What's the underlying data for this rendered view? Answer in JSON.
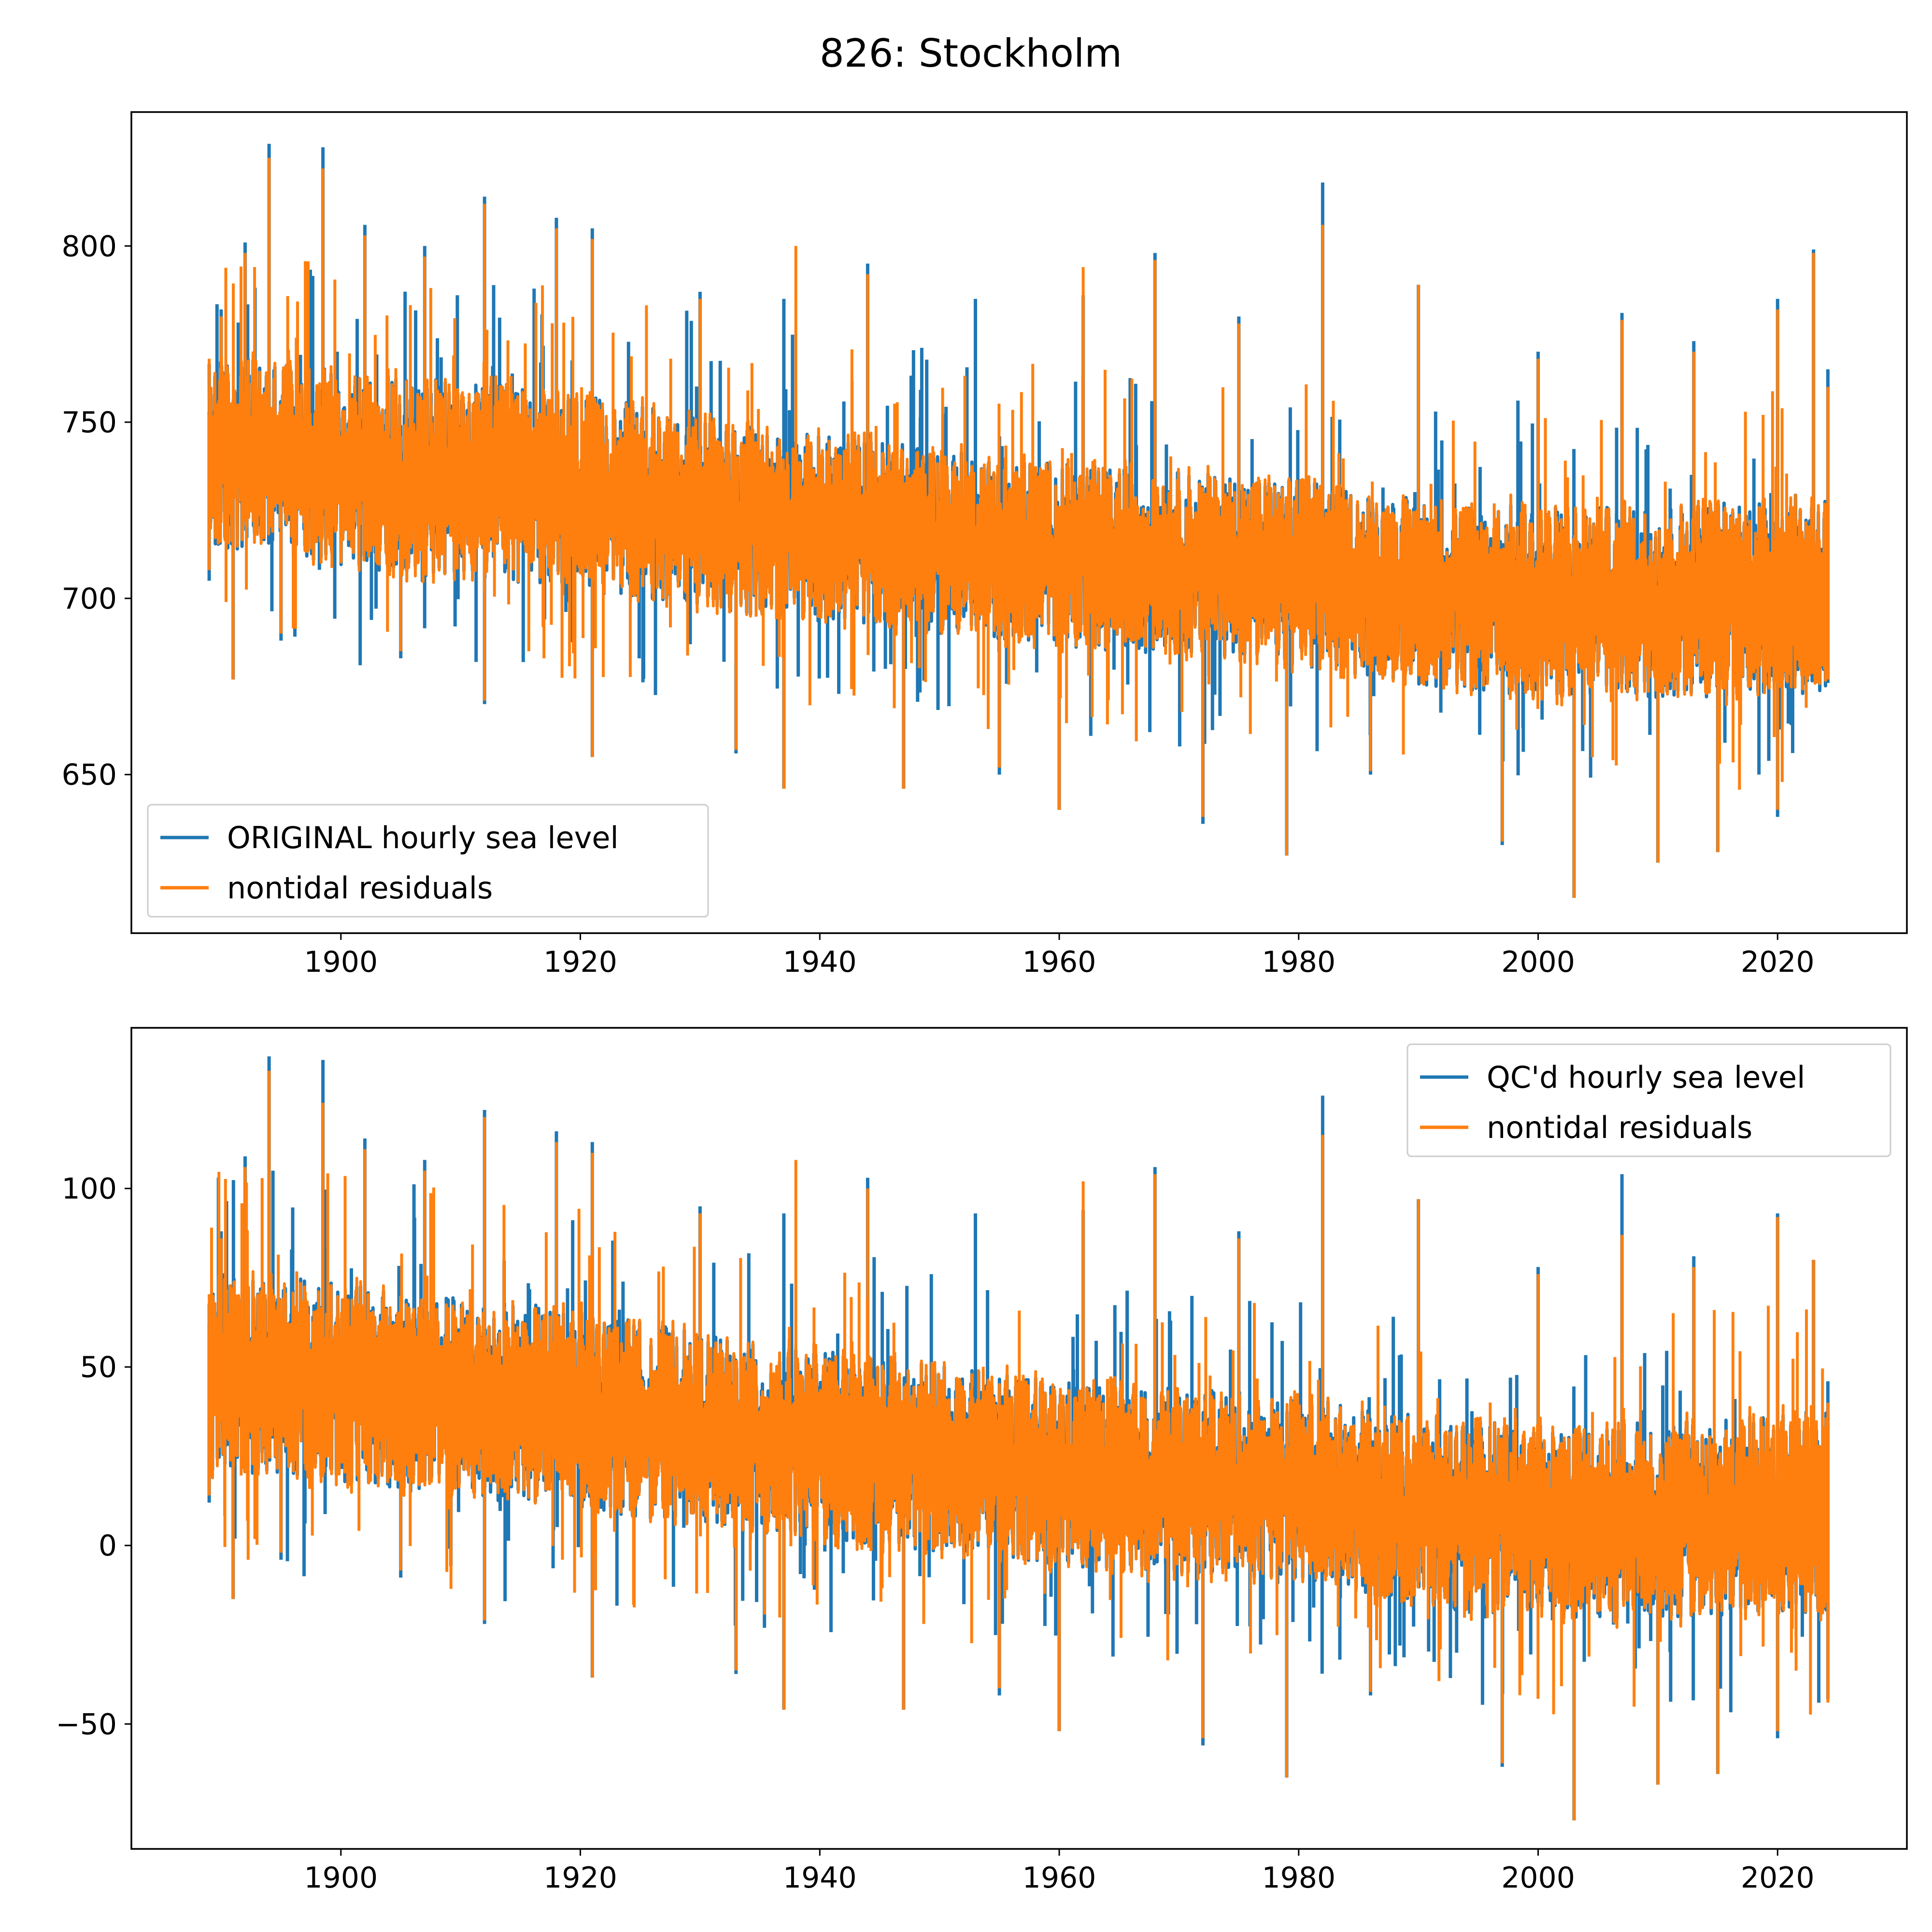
{
  "figure": {
    "title": "826: Stockholm"
  },
  "colors": {
    "original": "#1f77b4",
    "residual": "#ff7f0e"
  },
  "chart_data": [
    {
      "type": "line",
      "title": "",
      "xlabel": "",
      "ylabel": "",
      "xlim": [
        1882.5,
        2030.8
      ],
      "ylim": [
        605,
        838
      ],
      "xticks": [
        1900,
        1920,
        1940,
        1960,
        1980,
        2000,
        2020
      ],
      "yticks": [
        650,
        700,
        750,
        800
      ],
      "xtick_labels": [
        "1900",
        "1920",
        "1940",
        "1960",
        "1980",
        "2000",
        "2020"
      ],
      "ytick_labels": [
        "650",
        "700",
        "750",
        "800"
      ],
      "grid": false,
      "legend_position": "lower-left",
      "time_range": [
        1889.0,
        2024.2
      ],
      "series": [
        {
          "name": "ORIGINAL hourly sea level",
          "color": "#1f77b4",
          "max_points": [
            [
              1889.0,
              753
            ],
            [
              1890,
              782
            ],
            [
              1892,
              801
            ],
            [
              1894,
              829
            ],
            [
              1898.5,
              828
            ],
            [
              1902,
              806
            ],
            [
              1907,
              800
            ],
            [
              1912,
              814
            ],
            [
              1918,
              808
            ],
            [
              1921,
              805
            ],
            [
              1930,
              787
            ],
            [
              1937,
              785
            ],
            [
              1944,
              795
            ],
            [
              1953,
              785
            ],
            [
              1962,
              786
            ],
            [
              1968,
              798
            ],
            [
              1975,
              780
            ],
            [
              1982,
              818
            ],
            [
              1990,
              789
            ],
            [
              2000,
              770
            ],
            [
              2007,
              781
            ],
            [
              2013,
              773
            ],
            [
              2020,
              785
            ],
            [
              2023,
              799
            ],
            [
              2024.2,
              765
            ]
          ],
          "min_points": [
            [
              1889.0,
              705
            ],
            [
              1891,
              677
            ],
            [
              1895,
              688
            ],
            [
              1905,
              683
            ],
            [
              1912,
              670
            ],
            [
              1921,
              655
            ],
            [
              1933,
              656
            ],
            [
              1937,
              646
            ],
            [
              1947,
              646
            ],
            [
              1955,
              650
            ],
            [
              1960,
              640
            ],
            [
              1972,
              636
            ],
            [
              1979,
              627
            ],
            [
              1986,
              650
            ],
            [
              1997,
              630
            ],
            [
              2003,
              615
            ],
            [
              2010,
              625
            ],
            [
              2015,
              628
            ],
            [
              2020,
              638
            ],
            [
              2024.2,
              676
            ]
          ],
          "envelope_high": [
            [
              1889.0,
              768
            ],
            [
              1895,
              768
            ],
            [
              1905,
              763
            ],
            [
              1915,
              760
            ],
            [
              1925,
              755
            ],
            [
              1935,
              748
            ],
            [
              1945,
              745
            ],
            [
              1955,
              740
            ],
            [
              1965,
              737
            ],
            [
              1975,
              735
            ],
            [
              1982.5,
              733
            ],
            [
              1985,
              730
            ],
            [
              1995,
              727
            ],
            [
              2005,
              726
            ],
            [
              2015,
              728
            ],
            [
              2024.2,
              730
            ]
          ],
          "envelope_low": [
            [
              1889.0,
              712
            ],
            [
              1895,
              712
            ],
            [
              1905,
              707
            ],
            [
              1915,
              704
            ],
            [
              1925,
              700
            ],
            [
              1935,
              695
            ],
            [
              1945,
              692
            ],
            [
              1955,
              688
            ],
            [
              1965,
              685
            ],
            [
              1975,
              683
            ],
            [
              1982.5,
              680
            ],
            [
              1985,
              678
            ],
            [
              1995,
              673
            ],
            [
              2005,
              671
            ],
            [
              2015,
              672
            ],
            [
              2024.2,
              673
            ]
          ]
        },
        {
          "name": "nontidal residuals",
          "color": "#ff7f0e",
          "max_points": [
            [
              1889.0,
              752
            ],
            [
              1890,
              780
            ],
            [
              1892,
              798
            ],
            [
              1894,
              825
            ],
            [
              1898.5,
              822
            ],
            [
              1902,
              803
            ],
            [
              1907,
              797
            ],
            [
              1912,
              812
            ],
            [
              1918,
              805
            ],
            [
              1921,
              802
            ],
            [
              1930,
              785
            ],
            [
              1938,
              800
            ],
            [
              1944,
              792
            ],
            [
              1962,
              794
            ],
            [
              1968,
              796
            ],
            [
              1975,
              778
            ],
            [
              1982,
              806
            ],
            [
              1990,
              789
            ],
            [
              2000,
              768
            ],
            [
              2007,
              779
            ],
            [
              2013,
              770
            ],
            [
              2020,
              782
            ],
            [
              2023,
              798
            ],
            [
              2024.2,
              760
            ]
          ],
          "min_points": [
            [
              1889.0,
              708
            ],
            [
              1891,
              677
            ],
            [
              1895,
              690
            ],
            [
              1905,
              685
            ],
            [
              1912,
              671
            ],
            [
              1921,
              655
            ],
            [
              1933,
              657
            ],
            [
              1937,
              646
            ],
            [
              1947,
              646
            ],
            [
              1955,
              652
            ],
            [
              1960,
              640
            ],
            [
              1972,
              638
            ],
            [
              1979,
              627
            ],
            [
              1986,
              651
            ],
            [
              1997,
              631
            ],
            [
              2003,
              615
            ],
            [
              2010,
              625
            ],
            [
              2015,
              628
            ],
            [
              2020,
              640
            ],
            [
              2024.2,
              677
            ]
          ]
        }
      ]
    },
    {
      "type": "line",
      "title": "",
      "xlabel": "",
      "ylabel": "",
      "xlim": [
        1882.5,
        2030.8
      ],
      "ylim": [
        -85,
        145
      ],
      "xticks": [
        1900,
        1920,
        1940,
        1960,
        1980,
        2000,
        2020
      ],
      "yticks": [
        -50,
        0,
        50,
        100
      ],
      "xtick_labels": [
        "1900",
        "1920",
        "1940",
        "1960",
        "1980",
        "2000",
        "2020"
      ],
      "ytick_labels": [
        "−50",
        "0",
        "50",
        "100"
      ],
      "grid": false,
      "legend_position": "upper-right",
      "time_range": [
        1889.0,
        2024.2
      ],
      "series": [
        {
          "name": "QC'd hourly sea level",
          "color": "#1f77b4",
          "max_points": [
            [
              1889.0,
              62
            ],
            [
              1890,
              88
            ],
            [
              1892,
              109
            ],
            [
              1894,
              137
            ],
            [
              1898.5,
              136
            ],
            [
              1902,
              114
            ],
            [
              1907,
              108
            ],
            [
              1912,
              122
            ],
            [
              1918,
              116
            ],
            [
              1921,
              113
            ],
            [
              1930,
              95
            ],
            [
              1937,
              93
            ],
            [
              1944,
              103
            ],
            [
              1953,
              93
            ],
            [
              1962,
              94
            ],
            [
              1968,
              106
            ],
            [
              1975,
              88
            ],
            [
              1982,
              126
            ],
            [
              1990,
              97
            ],
            [
              2000,
              78
            ],
            [
              2007,
              104
            ],
            [
              2013,
              81
            ],
            [
              2020,
              93
            ],
            [
              2023,
              80
            ],
            [
              2024.2,
              46
            ]
          ],
          "min_points": [
            [
              1889.0,
              12
            ],
            [
              1891,
              -15
            ],
            [
              1895,
              -4
            ],
            [
              1905,
              -9
            ],
            [
              1912,
              -22
            ],
            [
              1921,
              -37
            ],
            [
              1933,
              -36
            ],
            [
              1937,
              -46
            ],
            [
              1947,
              -46
            ],
            [
              1955,
              -42
            ],
            [
              1960,
              -52
            ],
            [
              1972,
              -56
            ],
            [
              1979,
              -65
            ],
            [
              1986,
              -42
            ],
            [
              1997,
              -62
            ],
            [
              2003,
              -77
            ],
            [
              2010,
              -67
            ],
            [
              2015,
              -64
            ],
            [
              2020,
              -54
            ],
            [
              2024.2,
              -43
            ]
          ],
          "envelope_high": [
            [
              1889.0,
              76
            ],
            [
              1895,
              76
            ],
            [
              1905,
              71
            ],
            [
              1915,
              68
            ],
            [
              1925,
              63
            ],
            [
              1935,
              56
            ],
            [
              1945,
              53
            ],
            [
              1955,
              48
            ],
            [
              1965,
              45
            ],
            [
              1975,
              43
            ],
            [
              1982.5,
              41
            ],
            [
              1985,
              38
            ],
            [
              1995,
              35
            ],
            [
              2005,
              34
            ],
            [
              2015,
              36
            ],
            [
              2024.2,
              38
            ]
          ],
          "envelope_low": [
            [
              1889.0,
              20
            ],
            [
              1895,
              20
            ],
            [
              1905,
              15
            ],
            [
              1915,
              12
            ],
            [
              1925,
              8
            ],
            [
              1935,
              3
            ],
            [
              1945,
              0
            ],
            [
              1955,
              -4
            ],
            [
              1965,
              -7
            ],
            [
              1975,
              -9
            ],
            [
              1982.5,
              -12
            ],
            [
              1985,
              -14
            ],
            [
              1995,
              -19
            ],
            [
              2005,
              -21
            ],
            [
              2015,
              -20
            ],
            [
              2024.2,
              -19
            ]
          ]
        },
        {
          "name": "nontidal residuals",
          "color": "#ff7f0e",
          "max_points": [
            [
              1889.0,
              60
            ],
            [
              1890,
              86
            ],
            [
              1892,
              106
            ],
            [
              1894,
              133
            ],
            [
              1898.5,
              124
            ],
            [
              1902,
              111
            ],
            [
              1907,
              105
            ],
            [
              1912,
              120
            ],
            [
              1918,
              113
            ],
            [
              1921,
              110
            ],
            [
              1930,
              93
            ],
            [
              1938,
              108
            ],
            [
              1944,
              100
            ],
            [
              1962,
              102
            ],
            [
              1968,
              104
            ],
            [
              1975,
              86
            ],
            [
              1982,
              115
            ],
            [
              1990,
              97
            ],
            [
              2000,
              76
            ],
            [
              2007,
              87
            ],
            [
              2013,
              78
            ],
            [
              2020,
              92
            ],
            [
              2023,
              80
            ],
            [
              2024.2,
              40
            ]
          ],
          "min_points": [
            [
              1889.0,
              14
            ],
            [
              1891,
              -15
            ],
            [
              1895,
              -2
            ],
            [
              1905,
              -7
            ],
            [
              1912,
              -21
            ],
            [
              1921,
              -37
            ],
            [
              1933,
              -35
            ],
            [
              1937,
              -46
            ],
            [
              1947,
              -46
            ],
            [
              1955,
              -40
            ],
            [
              1960,
              -52
            ],
            [
              1972,
              -54
            ],
            [
              1979,
              -65
            ],
            [
              1986,
              -41
            ],
            [
              1997,
              -61
            ],
            [
              2003,
              -77
            ],
            [
              2010,
              -67
            ],
            [
              2015,
              -64
            ],
            [
              2020,
              -52
            ],
            [
              2024.2,
              -44
            ]
          ]
        }
      ]
    }
  ]
}
